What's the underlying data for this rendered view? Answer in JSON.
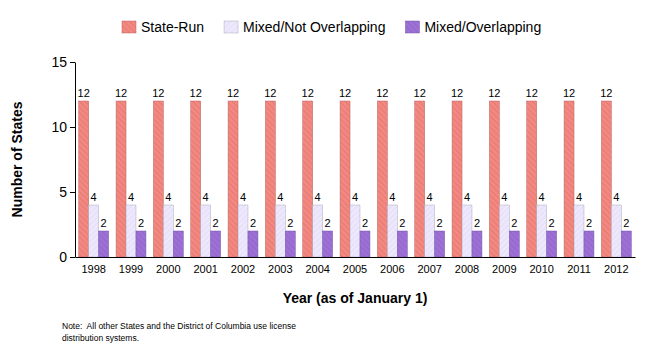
{
  "chart_data": {
    "type": "bar",
    "x_label": "Year (as of January 1)",
    "y_label": "Number of States",
    "categories": [
      "1998",
      "1999",
      "2000",
      "2001",
      "2002",
      "2003",
      "2004",
      "2005",
      "2006",
      "2007",
      "2008",
      "2009",
      "2010",
      "2011",
      "2012"
    ],
    "series": [
      {
        "name": "State-Run",
        "color": "#f4877f",
        "values": [
          12,
          12,
          12,
          12,
          12,
          12,
          12,
          12,
          12,
          12,
          12,
          12,
          12,
          12,
          12
        ]
      },
      {
        "name": "Mixed/Not Overlapping",
        "color": "#e8e2fa",
        "values": [
          4,
          4,
          4,
          4,
          4,
          4,
          4,
          4,
          4,
          4,
          4,
          4,
          4,
          4,
          4
        ]
      },
      {
        "name": "Mixed/Overlapping",
        "color": "#9d70d8",
        "values": [
          2,
          2,
          2,
          2,
          2,
          2,
          2,
          2,
          2,
          2,
          2,
          2,
          2,
          2,
          2
        ]
      }
    ],
    "ylim": [
      0,
      15
    ],
    "yticks": [
      0,
      5,
      10,
      15
    ],
    "grid": false,
    "legend": "top",
    "data_labels": true,
    "annotations": [
      "Note:  All other States and the District of Columbia use license",
      "distribution systems."
    ]
  }
}
